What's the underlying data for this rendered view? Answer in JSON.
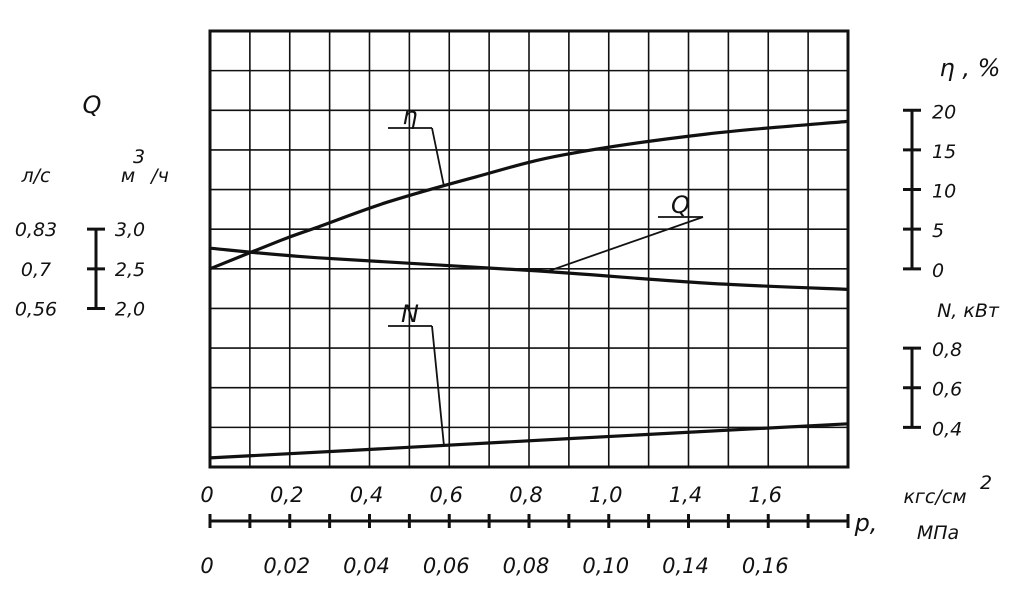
{
  "chart_data": {
    "type": "line",
    "grid": true,
    "x_axis": {
      "label": "p,",
      "unit_top": "кгс/см",
      "unit_top_sup": "2",
      "unit_bottom": "МПа",
      "range_kgf": [
        0,
        1.8
      ],
      "ticks_kgf": [
        "0",
        "0,2",
        "0,4",
        "0,6",
        "0,8",
        "1,0",
        "1,4",
        "1,6"
      ],
      "ticks_mpa": [
        "0",
        "0,02",
        "0,04",
        "0,06",
        "0,08",
        "0,10",
        "0,14",
        "0,16"
      ]
    },
    "left_axis": {
      "label": "Q",
      "unit_ls": "л/с",
      "unit_m3h_base": "м",
      "unit_m3h_sup": "3",
      "unit_m3h_tail": "/ч",
      "ticks_ls": [
        "0,83",
        "0,7",
        "0,56"
      ],
      "ticks_m3h": [
        "3,0",
        "2,5",
        "2,0"
      ],
      "range_m3h": [
        2.0,
        3.0
      ]
    },
    "right_axis_eta": {
      "label": "η , %",
      "ticks": [
        "20",
        "15",
        "10",
        "5",
        "0"
      ],
      "range": [
        0,
        20
      ]
    },
    "right_axis_n": {
      "label": "N, кВт",
      "ticks": [
        "0,8",
        "0,6",
        "0,4"
      ],
      "range": [
        0.4,
        0.8
      ]
    },
    "series": [
      {
        "name": "η",
        "axis": "eta",
        "points": [
          [
            0,
            0
          ],
          [
            0.2,
            3.6
          ],
          [
            0.3,
            5.2
          ],
          [
            0.5,
            8.4
          ],
          [
            0.75,
            11.6
          ],
          [
            1.0,
            14.4
          ],
          [
            1.4,
            17.0
          ],
          [
            1.8,
            18.6
          ]
        ]
      },
      {
        "name": "Q",
        "axis": "q",
        "points": [
          [
            0,
            2.76
          ],
          [
            0.3,
            2.64
          ],
          [
            0.9,
            2.48
          ],
          [
            1.4,
            2.32
          ],
          [
            1.8,
            2.24
          ]
        ]
      },
      {
        "name": "N",
        "axis": "n",
        "points": [
          [
            0,
            0.246
          ],
          [
            0.4,
            0.284
          ],
          [
            1.0,
            0.342
          ],
          [
            1.8,
            0.418
          ]
        ]
      }
    ]
  }
}
